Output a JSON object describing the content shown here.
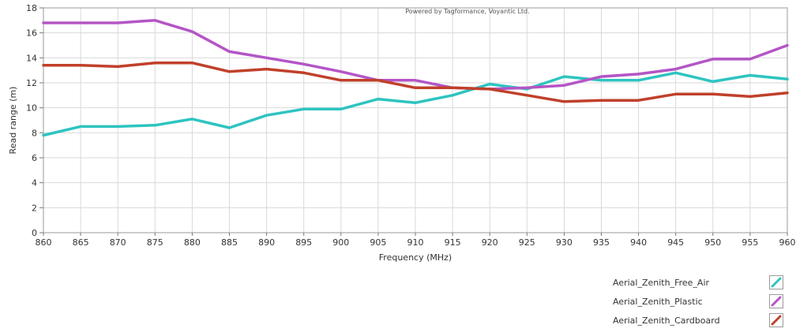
{
  "chart_data": {
    "type": "line",
    "title": "",
    "credit": "Powered by Tagformance, Voyantic Ltd.",
    "xlabel": "Frequency (MHz)",
    "ylabel": "Read range (m)",
    "xlim": [
      860,
      960
    ],
    "ylim": [
      0,
      18
    ],
    "xticks": [
      860,
      865,
      870,
      875,
      880,
      885,
      890,
      895,
      900,
      905,
      910,
      915,
      920,
      925,
      930,
      935,
      940,
      945,
      950,
      955,
      960
    ],
    "yticks": [
      0,
      2,
      4,
      6,
      8,
      10,
      12,
      14,
      16,
      18
    ],
    "grid": true,
    "legend_position": "bottom-right",
    "x": [
      860,
      865,
      870,
      875,
      880,
      885,
      890,
      895,
      900,
      905,
      910,
      915,
      920,
      925,
      930,
      935,
      940,
      945,
      950,
      955,
      960
    ],
    "series": [
      {
        "name": "Aerial_Zenith_Free_Air",
        "color": "#2ec4c0",
        "values": [
          7.8,
          8.5,
          8.5,
          8.6,
          9.1,
          8.4,
          9.4,
          9.9,
          9.9,
          10.7,
          10.4,
          11.0,
          11.9,
          11.5,
          12.5,
          12.2,
          12.2,
          12.8,
          12.1,
          12.6,
          12.3
        ]
      },
      {
        "name": "Aerial_Zenith_Plastic",
        "color": "#b455c6",
        "values": [
          16.8,
          16.8,
          16.8,
          17.0,
          16.1,
          14.5,
          14.0,
          13.5,
          12.9,
          12.2,
          12.2,
          11.6,
          11.5,
          11.6,
          11.8,
          12.5,
          12.7,
          13.1,
          13.9,
          13.9,
          15.0
        ]
      },
      {
        "name": "Aerial_Zenith_Cardboard",
        "color": "#c0402a",
        "values": [
          13.4,
          13.4,
          13.3,
          13.6,
          13.6,
          12.9,
          13.1,
          12.8,
          12.2,
          12.2,
          11.6,
          11.6,
          11.5,
          11.0,
          10.5,
          10.6,
          10.6,
          11.1,
          11.1,
          10.9,
          11.2
        ]
      }
    ]
  }
}
